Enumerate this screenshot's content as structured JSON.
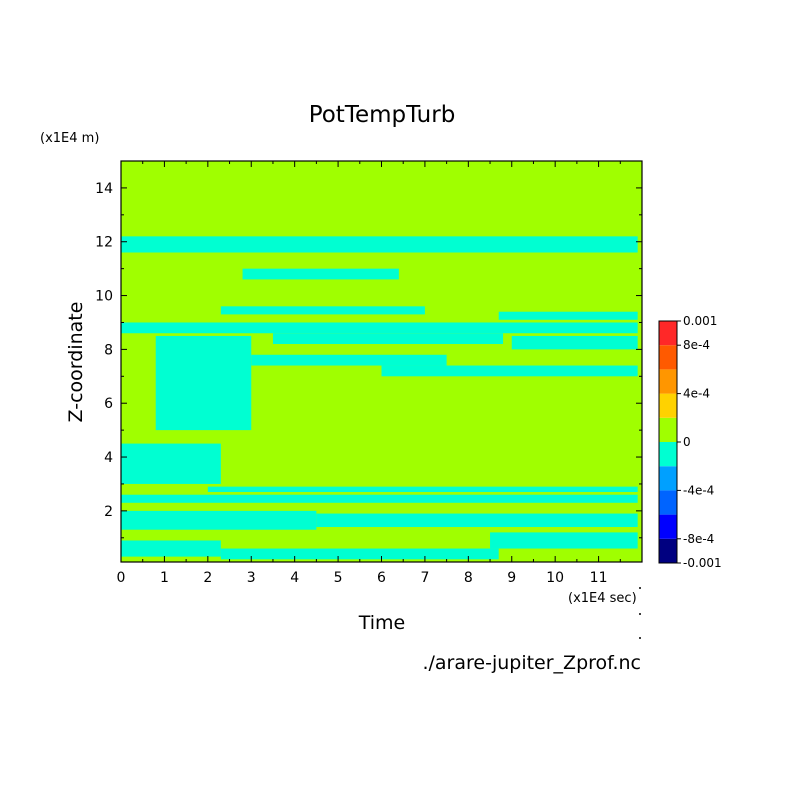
{
  "chart_data": {
    "type": "heatmap",
    "title": "PotTempTurb",
    "xlabel": "Time",
    "ylabel": "Z-coordinate",
    "x_unit": "(x1E4 sec)",
    "y_unit": "(x1E4 m)",
    "source_file": "./arare-jupiter_Zprof.nc",
    "xlim": [
      0,
      12
    ],
    "ylim": [
      0.1,
      15
    ],
    "x_ticks": [
      0,
      1,
      2,
      3,
      4,
      5,
      6,
      7,
      8,
      9,
      10,
      11
    ],
    "y_ticks": [
      2,
      4,
      6,
      8,
      10,
      12,
      14
    ],
    "grid": false,
    "legend_placement": "right",
    "colorbar": {
      "levels": [
        -0.001,
        -0.0008,
        -0.0006,
        -0.0004,
        -0.0002,
        0,
        0.0002,
        0.0004,
        0.0006,
        0.0008,
        0.001
      ],
      "colors": [
        "#000080",
        "#0000ff",
        "#0064ff",
        "#00a0ff",
        "#00ffd2",
        "#a0ff00",
        "#ffd200",
        "#ff9600",
        "#ff5a00",
        "#ff2828"
      ],
      "tick_labels": [
        {
          "value": 0.001,
          "label": "0.001"
        },
        {
          "value": 0.0008,
          "label": "8e-4"
        },
        {
          "value": 0.0004,
          "label": "4e-4"
        },
        {
          "value": 0,
          "label": "0"
        },
        {
          "value": -0.0004,
          "label": "-4e-4"
        },
        {
          "value": -0.0008,
          "label": "-8e-4"
        },
        {
          "value": -0.001,
          "label": "-0.001"
        }
      ]
    },
    "background_value_range": [
      0,
      0.0002
    ],
    "negative_regions": [
      {
        "x": [
          0,
          2.3
        ],
        "y": [
          0.3,
          0.9
        ]
      },
      {
        "x": [
          2.3,
          8.7
        ],
        "y": [
          0.2,
          0.6
        ]
      },
      {
        "x": [
          0,
          4.5
        ],
        "y": [
          1.3,
          2.0
        ]
      },
      {
        "x": [
          4.5,
          11.9
        ],
        "y": [
          1.4,
          1.9
        ]
      },
      {
        "x": [
          8.5,
          11.9
        ],
        "y": [
          0.6,
          1.2
        ]
      },
      {
        "x": [
          0,
          11.9
        ],
        "y": [
          2.3,
          2.6
        ]
      },
      {
        "x": [
          2.0,
          11.9
        ],
        "y": [
          2.7,
          2.9
        ]
      },
      {
        "x": [
          0,
          2.3
        ],
        "y": [
          3.0,
          4.5
        ]
      },
      {
        "x": [
          0.8,
          3.0
        ],
        "y": [
          5.0,
          8.5
        ]
      },
      {
        "x": [
          3.0,
          7.5
        ],
        "y": [
          7.4,
          7.8
        ]
      },
      {
        "x": [
          6.0,
          11.9
        ],
        "y": [
          7.0,
          7.4
        ]
      },
      {
        "x": [
          3.5,
          8.8
        ],
        "y": [
          8.2,
          8.6
        ]
      },
      {
        "x": [
          9.0,
          11.9
        ],
        "y": [
          8.0,
          8.5
        ]
      },
      {
        "x": [
          0,
          11.9
        ],
        "y": [
          8.6,
          9.0
        ]
      },
      {
        "x": [
          2.3,
          7.0
        ],
        "y": [
          9.3,
          9.6
        ]
      },
      {
        "x": [
          8.7,
          11.9
        ],
        "y": [
          9.1,
          9.4
        ]
      },
      {
        "x": [
          2.8,
          6.4
        ],
        "y": [
          10.6,
          11.0
        ]
      },
      {
        "x": [
          0,
          11.9
        ],
        "y": [
          11.6,
          12.2
        ]
      }
    ]
  }
}
